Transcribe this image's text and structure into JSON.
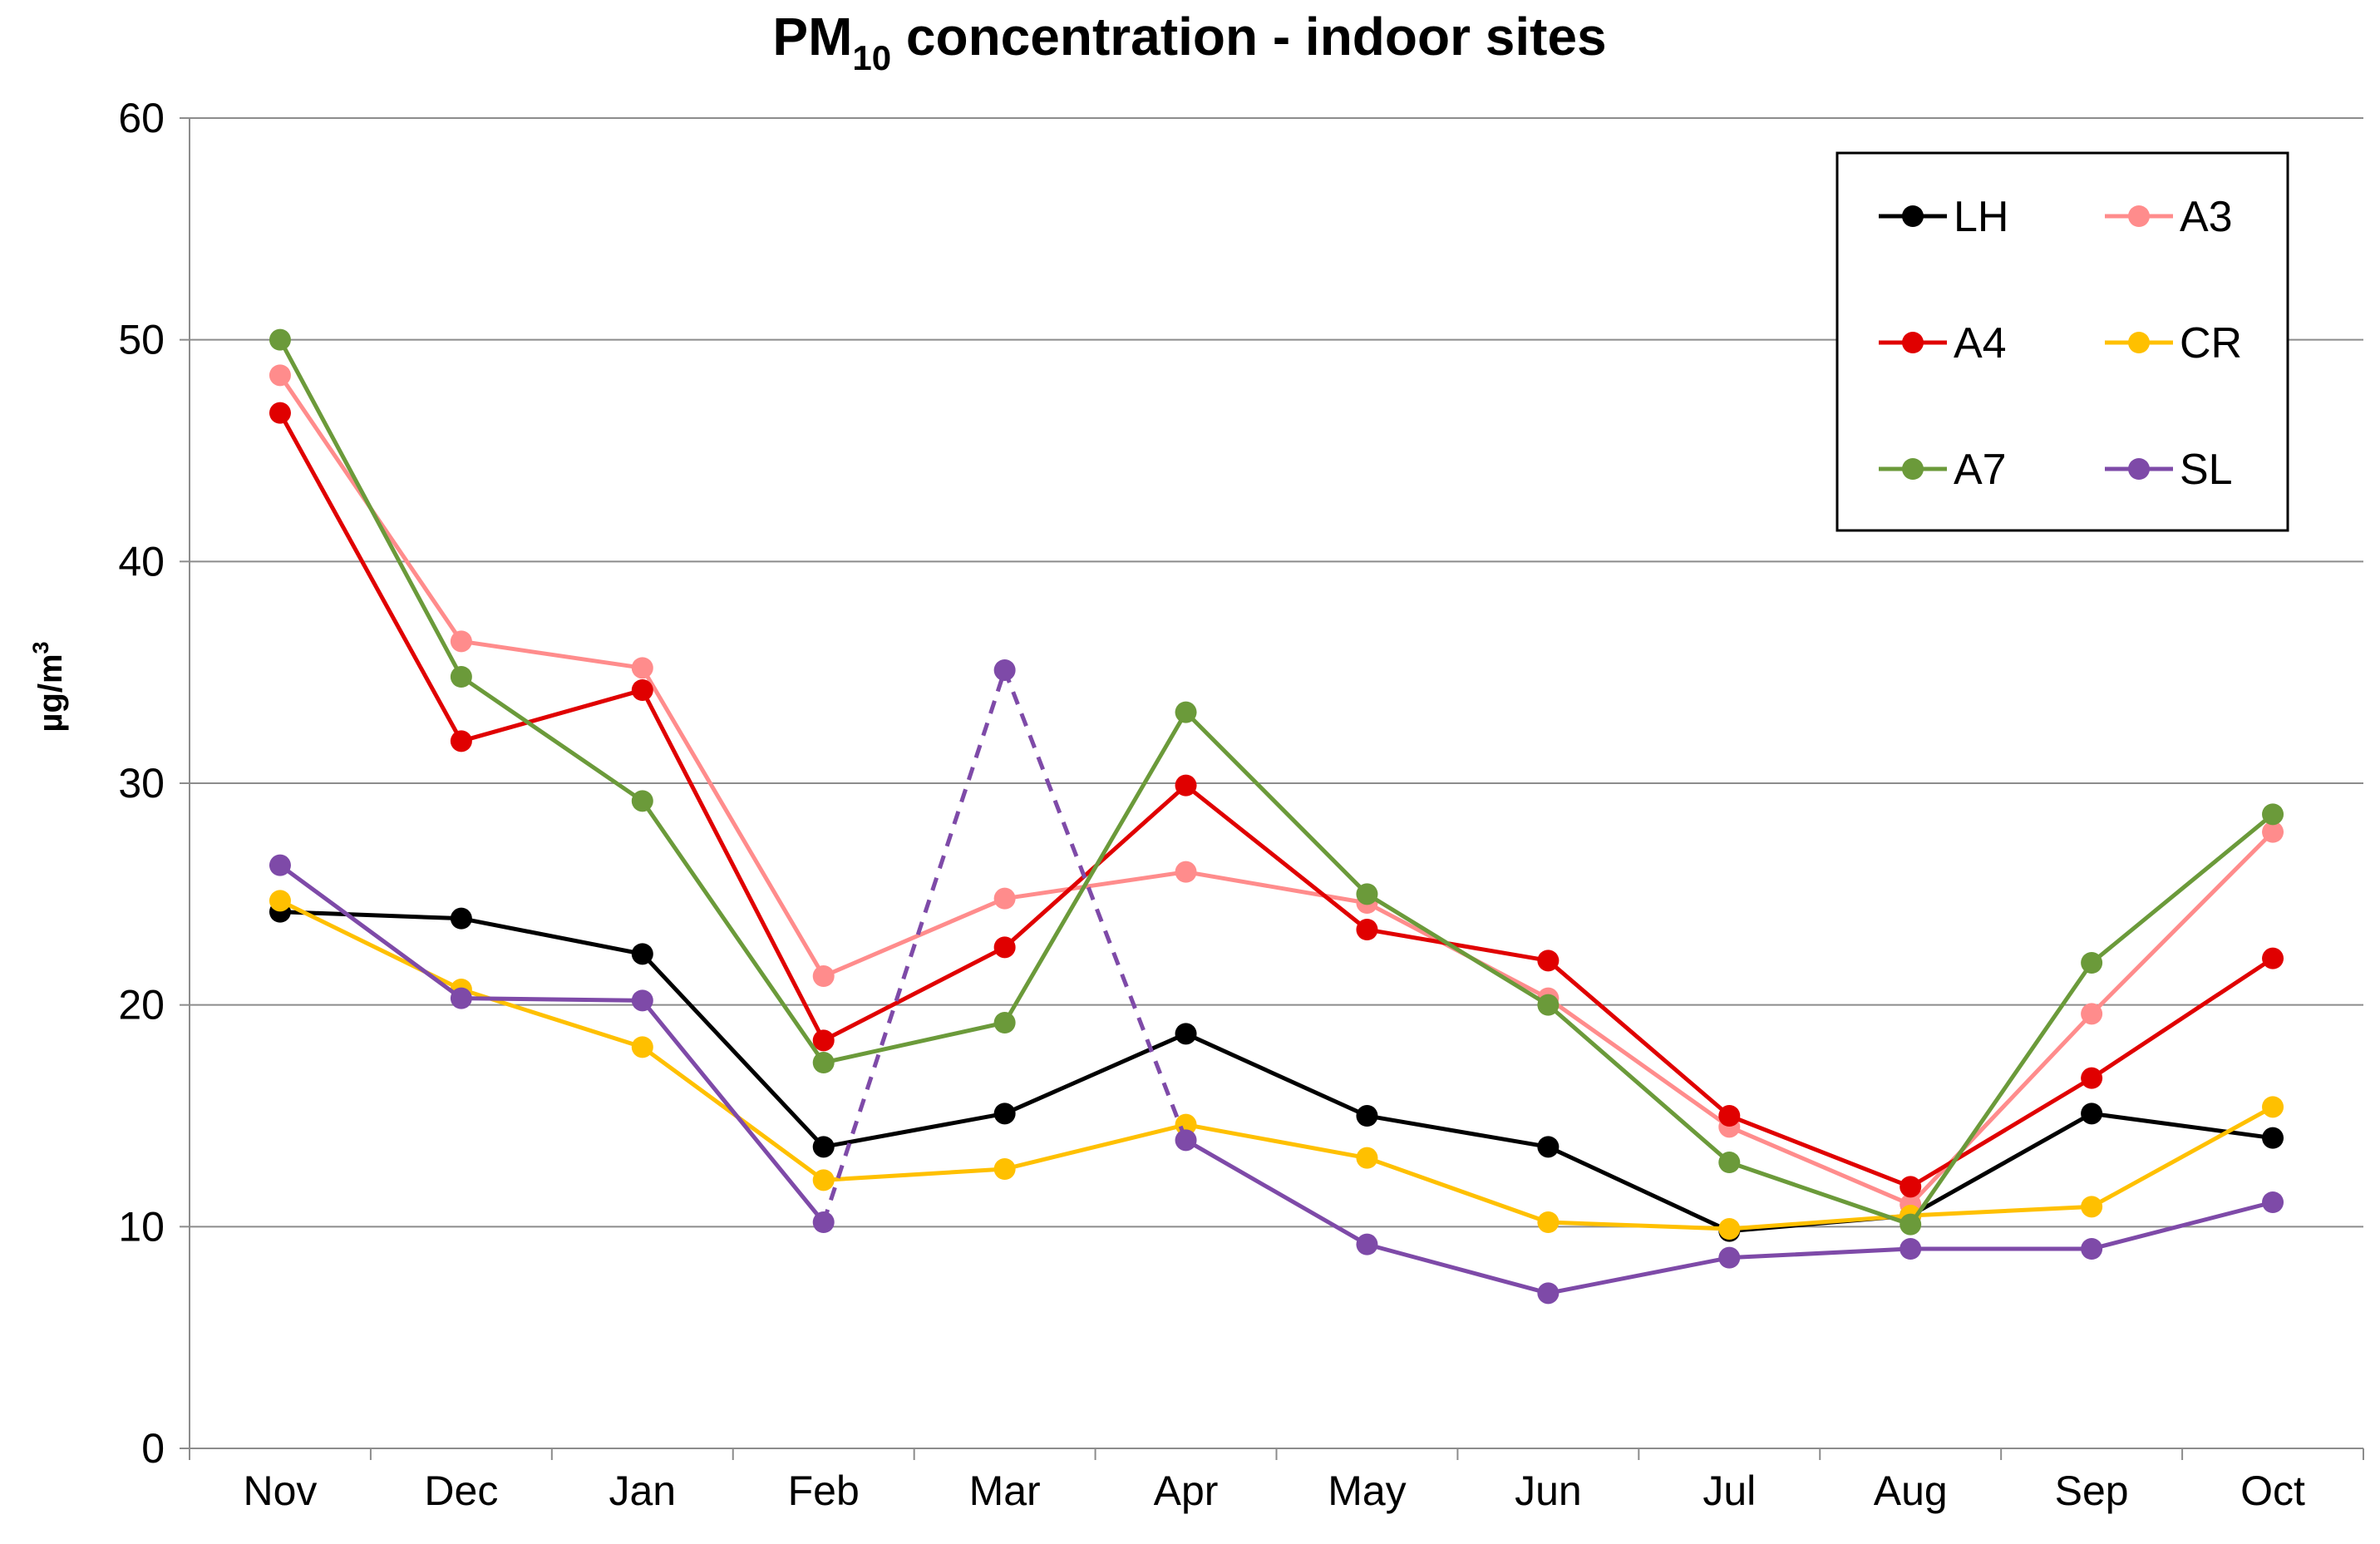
{
  "chart_data": {
    "type": "line",
    "title": "PM10 concentration - indoor sites",
    "title_parts": {
      "main": "PM",
      "subscript": "10",
      "rest": " concentration - indoor sites"
    },
    "xlabel": "",
    "ylabel": "µg/m3",
    "ylabel_parts": {
      "main": "µg/m",
      "superscript": "3"
    },
    "ylim": [
      0,
      60
    ],
    "yticks": [
      0,
      10,
      20,
      30,
      40,
      50,
      60
    ],
    "categories": [
      "Nov",
      "Dec",
      "Jan",
      "Feb",
      "Mar",
      "Apr",
      "May",
      "Jun",
      "Jul",
      "Aug",
      "Sep",
      "Oct"
    ],
    "grid": true,
    "legend_position": "top-right",
    "series": [
      {
        "name": "LH",
        "color": "#000000",
        "values": [
          24.2,
          23.9,
          22.3,
          13.6,
          15.1,
          18.7,
          15.0,
          13.6,
          9.8,
          10.5,
          15.1,
          14.0
        ]
      },
      {
        "name": "A3",
        "color": "#FF8C8C",
        "values": [
          48.4,
          36.4,
          35.2,
          21.3,
          24.8,
          26.0,
          24.6,
          20.3,
          14.5,
          11.0,
          19.6,
          27.8
        ]
      },
      {
        "name": "A4",
        "color": "#E00000",
        "values": [
          46.7,
          31.9,
          34.2,
          18.4,
          22.6,
          29.9,
          23.4,
          22.0,
          15.0,
          11.8,
          16.7,
          22.1
        ]
      },
      {
        "name": "CR",
        "color": "#FFC000",
        "values": [
          24.7,
          20.7,
          18.1,
          12.1,
          12.6,
          14.6,
          13.1,
          10.2,
          9.9,
          10.5,
          10.9,
          15.4
        ]
      },
      {
        "name": "A7",
        "color": "#6B9A3A",
        "values": [
          50.0,
          34.8,
          29.2,
          17.4,
          19.2,
          33.2,
          25.0,
          20.0,
          12.9,
          10.1,
          21.9,
          28.6
        ]
      },
      {
        "name": "SL",
        "color": "#7E4AA8",
        "values": [
          26.3,
          20.3,
          20.2,
          10.2,
          35.1,
          13.9,
          9.2,
          7.0,
          8.6,
          9.0,
          9.0,
          11.1
        ],
        "dashed_segments": [
          [
            3,
            4
          ],
          [
            4,
            5
          ]
        ]
      }
    ]
  }
}
